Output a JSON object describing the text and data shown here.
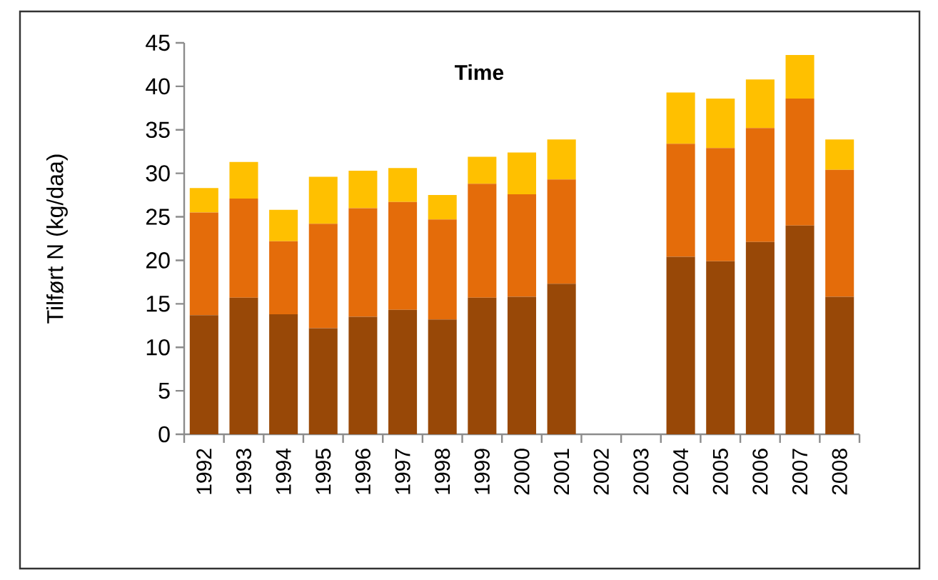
{
  "chart_data": {
    "type": "bar",
    "stacked": true,
    "title": "Time",
    "ylabel": "Tilført N (kg/daa)",
    "categories": [
      "1992",
      "1993",
      "1994",
      "1995",
      "1996",
      "1997",
      "1998",
      "1999",
      "2000",
      "2001",
      "2002",
      "2003",
      "2004",
      "2005",
      "2006",
      "2007",
      "2008"
    ],
    "series": [
      {
        "color": "#984807",
        "values": [
          13.7,
          15.7,
          13.8,
          12.2,
          13.5,
          14.3,
          13.2,
          15.7,
          15.8,
          17.3,
          null,
          null,
          20.4,
          19.9,
          22.1,
          24.0,
          15.8
        ]
      },
      {
        "color": "#e46c0a",
        "values": [
          11.8,
          11.4,
          8.4,
          12.0,
          12.5,
          12.4,
          11.5,
          13.1,
          11.8,
          12.0,
          null,
          null,
          13.0,
          13.0,
          13.1,
          14.6,
          14.6
        ]
      },
      {
        "color": "#ffc000",
        "values": [
          2.8,
          4.2,
          3.6,
          5.4,
          4.3,
          3.9,
          2.8,
          3.1,
          4.8,
          4.6,
          null,
          null,
          5.9,
          5.7,
          5.6,
          5.0,
          3.5
        ]
      }
    ],
    "ylim": [
      0,
      45
    ],
    "yticks": [
      0,
      5,
      10,
      15,
      20,
      25,
      30,
      35,
      40,
      45
    ],
    "grid": false
  }
}
